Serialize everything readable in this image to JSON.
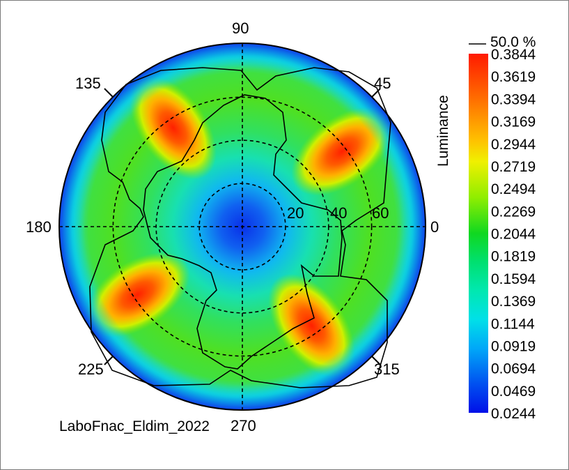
{
  "chart_data": {
    "type": "heatmap",
    "projection": "polar",
    "quantity": "Luminance",
    "contour_label": "50.0 %",
    "footer": "LaboFnac_Eldim_2022",
    "angle_labels": [
      "0",
      "45",
      "90",
      "135",
      "180",
      "225",
      "270",
      "315"
    ],
    "radial_ticks": [
      "20",
      "40",
      "60"
    ],
    "radial_max": 85,
    "colorbar_ticks": [
      "0.3844",
      "0.3619",
      "0.3394",
      "0.3169",
      "0.2944",
      "0.2719",
      "0.2494",
      "0.2269",
      "0.2044",
      "0.1819",
      "0.1594",
      "0.1369",
      "0.1144",
      "0.0919",
      "0.0694",
      "0.0469",
      "0.0244"
    ],
    "range": [
      0.0244,
      0.3844
    ],
    "hot_spots": [
      {
        "azimuth_deg": 125,
        "theta_deg": 56,
        "value": 0.384
      },
      {
        "azimuth_deg": 37,
        "theta_deg": 58,
        "value": 0.384
      },
      {
        "azimuth_deg": 213,
        "theta_deg": 58,
        "value": 0.384
      },
      {
        "azimuth_deg": 305,
        "theta_deg": 56,
        "value": 0.384
      }
    ],
    "center_value": 0.0244,
    "grid": true
  }
}
